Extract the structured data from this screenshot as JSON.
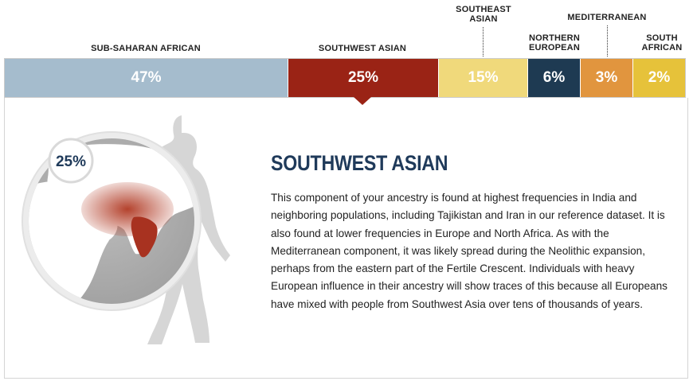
{
  "labels": {
    "sub_saharan_african": "SUB-SAHARAN AFRICAN",
    "southwest_asian": "SOUTHWEST ASIAN",
    "southeast_asian_line1": "SOUTHEAST",
    "southeast_asian_line2": "ASIAN",
    "northern_european_line1": "NORTHERN",
    "northern_european_line2": "EUROPEAN",
    "mediterranean": "MEDITERRANEAN",
    "south_african_line1": "SOUTH",
    "south_african_line2": "AFRICAN"
  },
  "segments": [
    {
      "name": "Sub-Saharan African",
      "value": "47%",
      "color": "#a5bccd"
    },
    {
      "name": "Southwest Asian",
      "value": "25%",
      "color": "#9a2315"
    },
    {
      "name": "Southeast Asian",
      "value": "15%",
      "color": "#f0d97b"
    },
    {
      "name": "Northern European",
      "value": "6%",
      "color": "#1e3a52"
    },
    {
      "name": "Mediterranean",
      "value": "3%",
      "color": "#e1953e"
    },
    {
      "name": "South African",
      "value": "2%",
      "color": "#e6c23a"
    }
  ],
  "detail": {
    "badge": "25%",
    "title": "SOUTHWEST ASIAN",
    "description": "This component of your ancestry is found at highest frequencies in India and neighboring populations, including Tajikistan and Iran in our reference dataset. It is also found at lower frequencies in Europe and North Africa. As with the Mediterranean component, it was likely spread during the Neolithic expansion, perhaps from the eastern part of the Fertile Crescent. Individuals with heavy European influence in their ancestry will show traces of this because all Europeans have mixed with people from Southwest Asia over tens of thousands of years."
  }
}
